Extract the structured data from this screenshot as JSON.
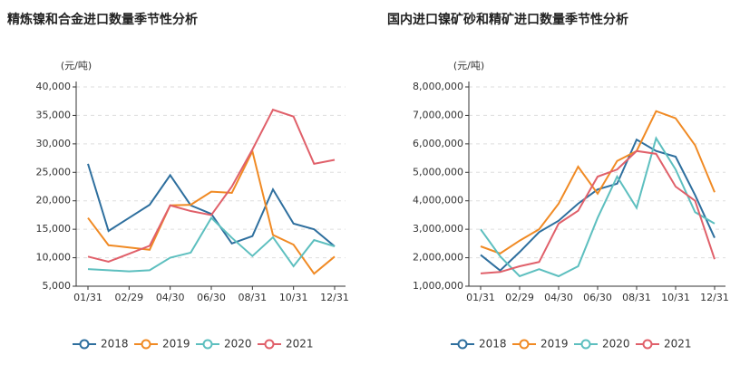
{
  "chart_data": [
    {
      "type": "line",
      "title": "精炼镍和合金进口数量季节性分析",
      "y_unit": "(元/吨)",
      "categories": [
        "01/31",
        null,
        "02/29",
        null,
        "04/30",
        null,
        "06/30",
        null,
        "08/31",
        null,
        "10/31",
        null,
        "12/31"
      ],
      "ylim": [
        5000,
        40000
      ],
      "yticks": [
        {
          "value": 5000,
          "label": "5,000"
        },
        {
          "value": 10000,
          "label": "10,000"
        },
        {
          "value": 15000,
          "label": "15,000"
        },
        {
          "value": 20000,
          "label": "20,000"
        },
        {
          "value": 25000,
          "label": "25,000"
        },
        {
          "value": 30000,
          "label": "30,000"
        },
        {
          "value": 35000,
          "label": "35,000"
        },
        {
          "value": 40000,
          "label": "40,000"
        }
      ],
      "grid": true,
      "series": [
        {
          "name": "2018",
          "color": "#2e6f9e",
          "values": [
            26500,
            14700,
            17000,
            19300,
            24500,
            19200,
            17700,
            12500,
            13800,
            22000,
            16000,
            15000,
            12000
          ]
        },
        {
          "name": "2019",
          "color": "#f08a24",
          "values": [
            17000,
            12200,
            11800,
            11400,
            19200,
            19300,
            21600,
            21400,
            28700,
            14000,
            12300,
            7200,
            10200
          ]
        },
        {
          "name": "2020",
          "color": "#5dbfbf",
          "values": [
            8000,
            7800,
            7600,
            7800,
            10000,
            10900,
            17000,
            13500,
            10300,
            13600,
            8500,
            13100,
            12000
          ]
        },
        {
          "name": "2021",
          "color": "#e0606a",
          "values": [
            10200,
            9300,
            10700,
            12100,
            19200,
            18200,
            17500,
            22500,
            29000,
            36000,
            34800,
            26500,
            27200
          ]
        }
      ]
    },
    {
      "type": "line",
      "title": "国内进口镍矿砂和精矿进口数量季节性分析",
      "y_unit": "(元/吨)",
      "categories": [
        "01/31",
        null,
        "02/29",
        null,
        "04/30",
        null,
        "06/30",
        null,
        "08/31",
        null,
        "10/31",
        null,
        "12/31"
      ],
      "ylim": [
        1000000,
        8000000
      ],
      "yticks": [
        {
          "value": 1000000,
          "label": "1,000,000"
        },
        {
          "value": 2000000,
          "label": "2,000,000"
        },
        {
          "value": 3000000,
          "label": "3,000,000"
        },
        {
          "value": 4000000,
          "label": "4,000,000"
        },
        {
          "value": 5000000,
          "label": "5,000,000"
        },
        {
          "value": 6000000,
          "label": "6,000,000"
        },
        {
          "value": 7000000,
          "label": "7,000,000"
        },
        {
          "value": 8000000,
          "label": "8,000,000"
        }
      ],
      "grid": true,
      "series": [
        {
          "name": "2018",
          "color": "#2e6f9e",
          "values": [
            2100000,
            1550000,
            2200000,
            2900000,
            3300000,
            3900000,
            4400000,
            4600000,
            6150000,
            5750000,
            5550000,
            4200000,
            2700000
          ]
        },
        {
          "name": "2019",
          "color": "#f08a24",
          "values": [
            2400000,
            2150000,
            2600000,
            3000000,
            3900000,
            5200000,
            4250000,
            5400000,
            5750000,
            7150000,
            6900000,
            5950000,
            4300000
          ]
        },
        {
          "name": "2020",
          "color": "#5dbfbf",
          "values": [
            3000000,
            2050000,
            1350000,
            1600000,
            1350000,
            1700000,
            3400000,
            4850000,
            3750000,
            6200000,
            5100000,
            3600000,
            3200000
          ]
        },
        {
          "name": "2021",
          "color": "#e0606a",
          "values": [
            1450000,
            1500000,
            1700000,
            1850000,
            3200000,
            3650000,
            4850000,
            5100000,
            5750000,
            5650000,
            4500000,
            4000000,
            1950000
          ]
        }
      ]
    }
  ]
}
